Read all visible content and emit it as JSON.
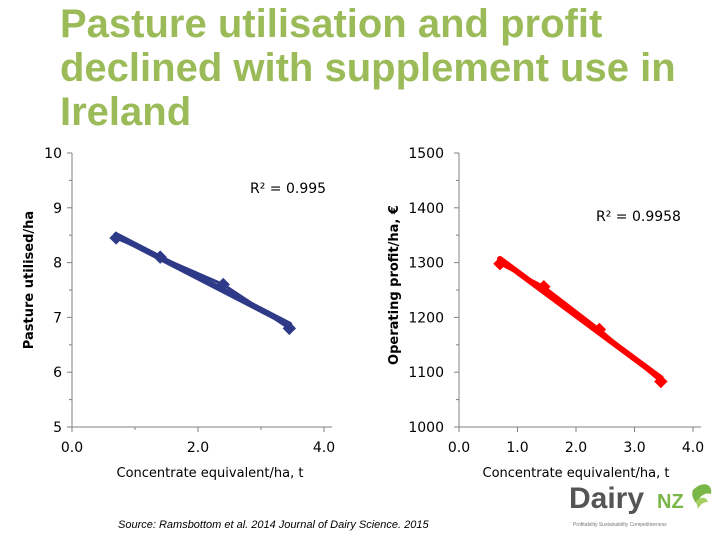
{
  "title_lines": [
    "Pasture utilisation and profit",
    "declined with supplement use in",
    "Ireland"
  ],
  "source": "Source: Ramsbottom et al. 2014 Journal of Dairy Science. 2015",
  "logo": {
    "name": "Dairy",
    "nz": "NZ",
    "tagline": "Profitability  Sustainability  Competitiveness"
  },
  "colors": {
    "title": "#9bbb59",
    "series_left": "#2e3a87",
    "series_right": "#ff0000"
  },
  "chart_data": [
    {
      "type": "line",
      "xlabel": "Concentrate equivalent/ha, t",
      "ylabel": "Pasture utilised/ha",
      "xlim": [
        0,
        4
      ],
      "ylim": [
        5,
        10
      ],
      "x_ticks": [
        "0.0",
        "2.0",
        "4.0"
      ],
      "y_ticks": [
        "5",
        "6",
        "7",
        "8",
        "9",
        "10"
      ],
      "annotation": "R² = 0.995",
      "series": [
        {
          "x": [
            0.7,
            1.4,
            2.4,
            3.45
          ],
          "y": [
            8.45,
            8.1,
            7.6,
            6.8
          ]
        }
      ]
    },
    {
      "type": "line",
      "xlabel": "Concentrate equivalent/ha, t",
      "ylabel": "Operating profit/ha, €",
      "xlim": [
        0,
        4
      ],
      "ylim": [
        1000,
        1500
      ],
      "x_ticks": [
        "0.0",
        "1.0",
        "2.0",
        "3.0",
        "4.0"
      ],
      "y_ticks": [
        "1000",
        "1100",
        "1200",
        "1300",
        "1400",
        "1500"
      ],
      "annotation": "R² = 0.9958",
      "series": [
        {
          "x": [
            0.7,
            1.45,
            2.4,
            3.45
          ],
          "y": [
            1298,
            1256,
            1178,
            1083
          ]
        }
      ]
    }
  ]
}
